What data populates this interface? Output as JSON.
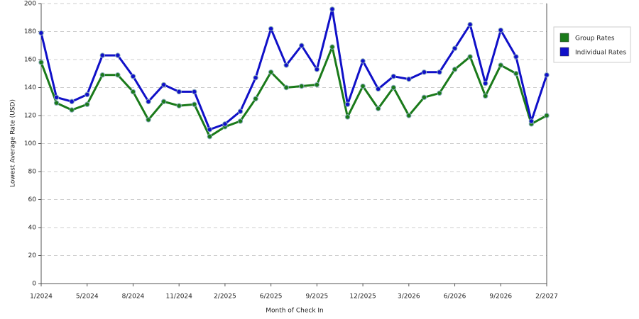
{
  "chart_data": {
    "type": "line",
    "x_label": "Month of Check In",
    "y_label": "Lowest Average Rate (USD)",
    "categories": [
      "1/2024",
      null,
      null,
      "5/2024",
      null,
      null,
      "8/2024",
      null,
      null,
      "11/2024",
      null,
      null,
      "2/2025",
      null,
      null,
      "6/2025",
      null,
      null,
      "9/2025",
      null,
      null,
      "12/2025",
      null,
      null,
      "3/2026",
      null,
      null,
      "6/2026",
      null,
      null,
      "9/2026",
      null,
      null,
      "2/2027"
    ],
    "series": [
      {
        "name": "Group Rates",
        "color": "#1a7a1a",
        "values": [
          158,
          129,
          124,
          128,
          149,
          149,
          137,
          117,
          130,
          127,
          128,
          105,
          112,
          116,
          132,
          151,
          140,
          141,
          142,
          169,
          119,
          141,
          125,
          140,
          120,
          133,
          136,
          153,
          162,
          134,
          156,
          150,
          114,
          120
        ]
      },
      {
        "name": "Individual Rates",
        "color": "#1010c8",
        "values": [
          179,
          133,
          130,
          135,
          163,
          163,
          148,
          130,
          142,
          137,
          137,
          110,
          114,
          123,
          147,
          182,
          156,
          170,
          153,
          196,
          128,
          159,
          139,
          148,
          146,
          151,
          151,
          168,
          185,
          143,
          181,
          162,
          116,
          149
        ]
      }
    ],
    "ylim": [
      0,
      200
    ],
    "yticks": [
      0,
      20,
      40,
      60,
      80,
      100,
      120,
      140,
      160,
      180,
      200
    ],
    "grid": true,
    "legend": "right"
  }
}
